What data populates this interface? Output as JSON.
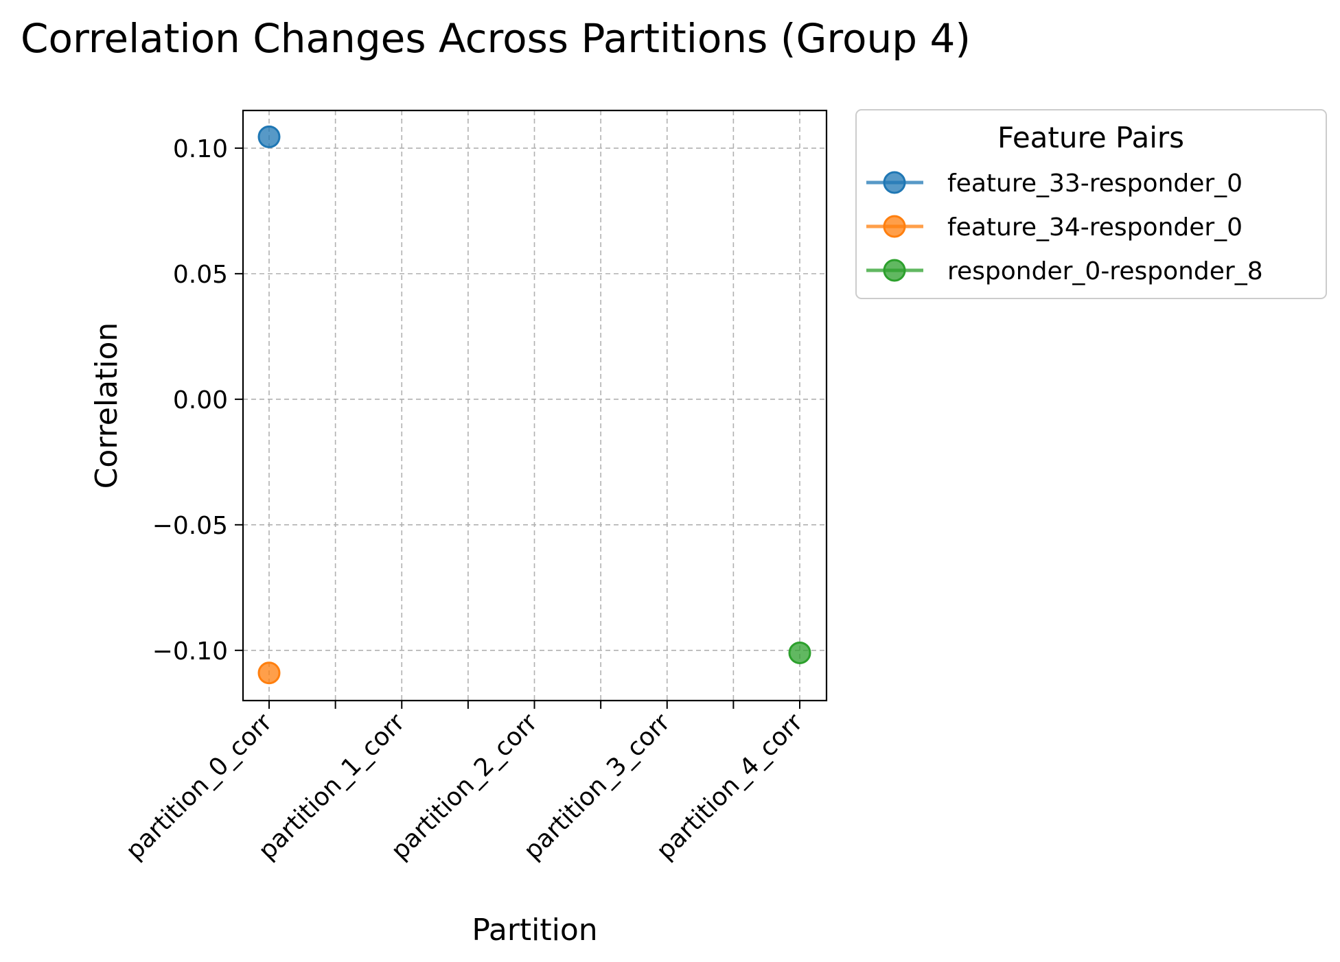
{
  "chart_data": {
    "type": "line",
    "title": "Correlation Changes Across Partitions (Group 4)",
    "xlabel": "Partition",
    "ylabel": "Correlation",
    "categories": [
      "partition_0_corr",
      "partition_1_corr",
      "partition_2_corr",
      "partition_3_corr",
      "partition_4_corr"
    ],
    "ylim": [
      -0.12,
      0.115
    ],
    "yticks": [
      0.1,
      0.05,
      0.0,
      -0.05,
      -0.1
    ],
    "ytick_labels": [
      "0.10",
      "0.05",
      "0.00",
      "−0.05",
      "−0.10"
    ],
    "grid": true,
    "series": [
      {
        "name": "feature_33-responder_0",
        "color": "#1f77b4",
        "values": [
          0.1045,
          null,
          null,
          null,
          null
        ]
      },
      {
        "name": "feature_34-responder_0",
        "color": "#ff7f0e",
        "values": [
          -0.109,
          null,
          null,
          null,
          null
        ]
      },
      {
        "name": "responder_0-responder_8",
        "color": "#2ca02c",
        "values": [
          null,
          null,
          null,
          null,
          -0.101
        ]
      }
    ],
    "legend": {
      "title": "Feature Pairs",
      "placement": "outside-right-top"
    }
  }
}
